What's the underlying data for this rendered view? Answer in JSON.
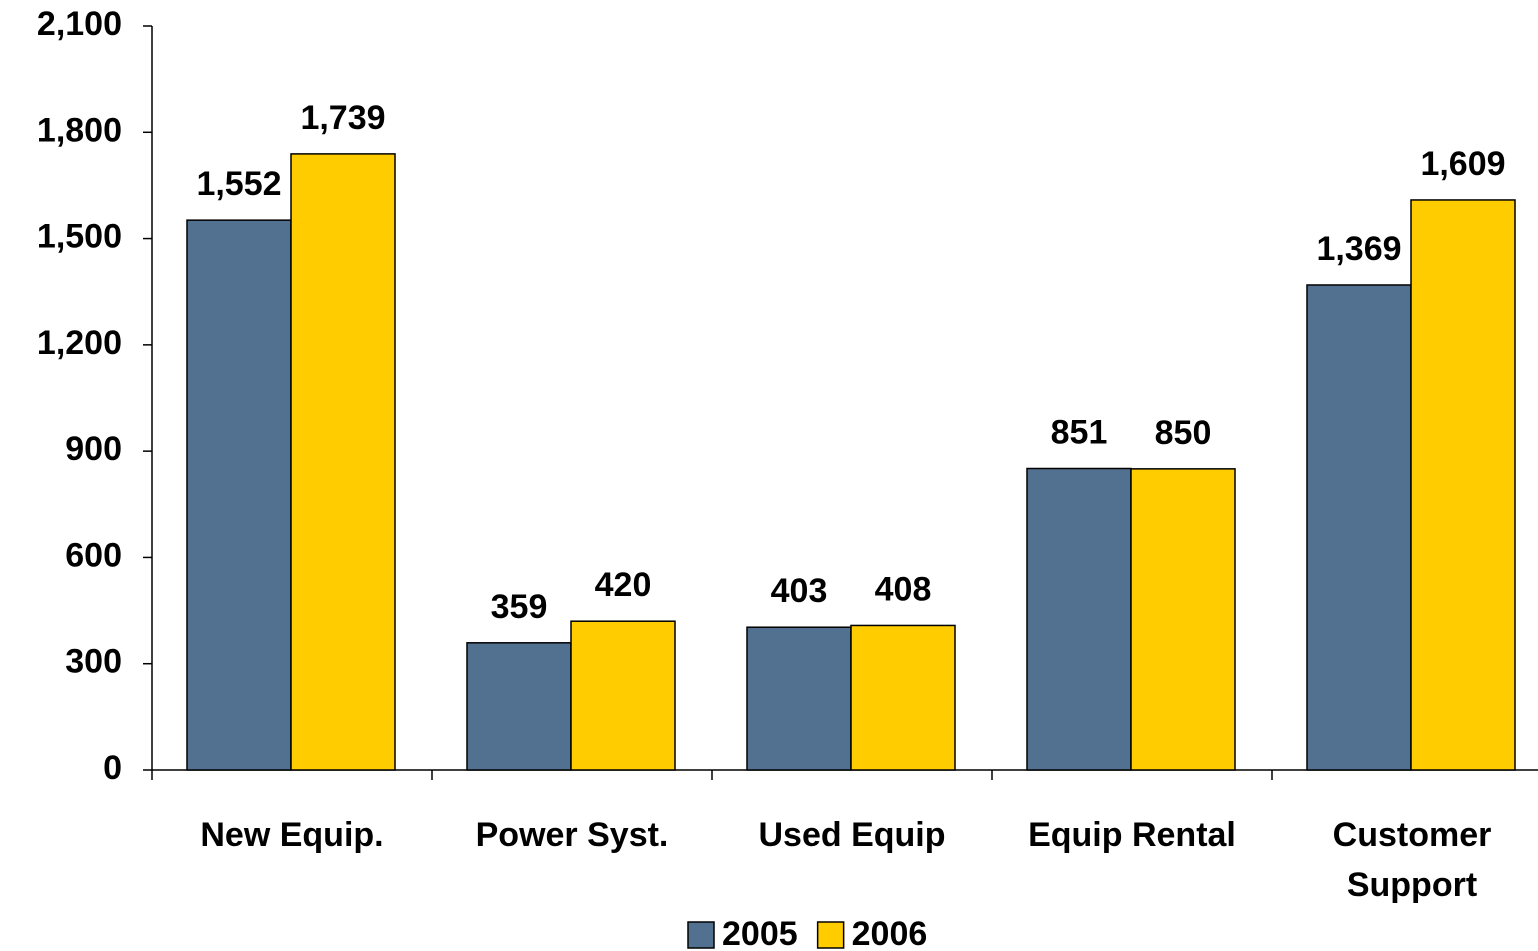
{
  "chart_data": {
    "type": "bar",
    "categories": [
      "New Equip.",
      "Power Syst.",
      "Used Equip",
      "Equip Rental",
      "Customer Support"
    ],
    "series": [
      {
        "name": "2005",
        "color": "#52708f",
        "values": [
          1552,
          359,
          403,
          851,
          1369
        ],
        "value_labels": [
          "1,552",
          "359",
          "403",
          "851",
          "1,369"
        ]
      },
      {
        "name": "2006",
        "color": "#ffcc00",
        "values": [
          1739,
          420,
          408,
          850,
          1609
        ],
        "value_labels": [
          "1,739",
          "420",
          "408",
          "850",
          "1,609"
        ]
      }
    ],
    "ylim": [
      0,
      2100
    ],
    "yticks": [
      0,
      300,
      600,
      900,
      {
        "value": 1200,
        "label": "1,200"
      },
      {
        "value": 1500,
        "label": "1,500"
      },
      {
        "value": 1800,
        "label": "1,800"
      },
      {
        "value": 2100,
        "label": "2,100"
      }
    ],
    "grid": false,
    "legend": "bottom"
  }
}
